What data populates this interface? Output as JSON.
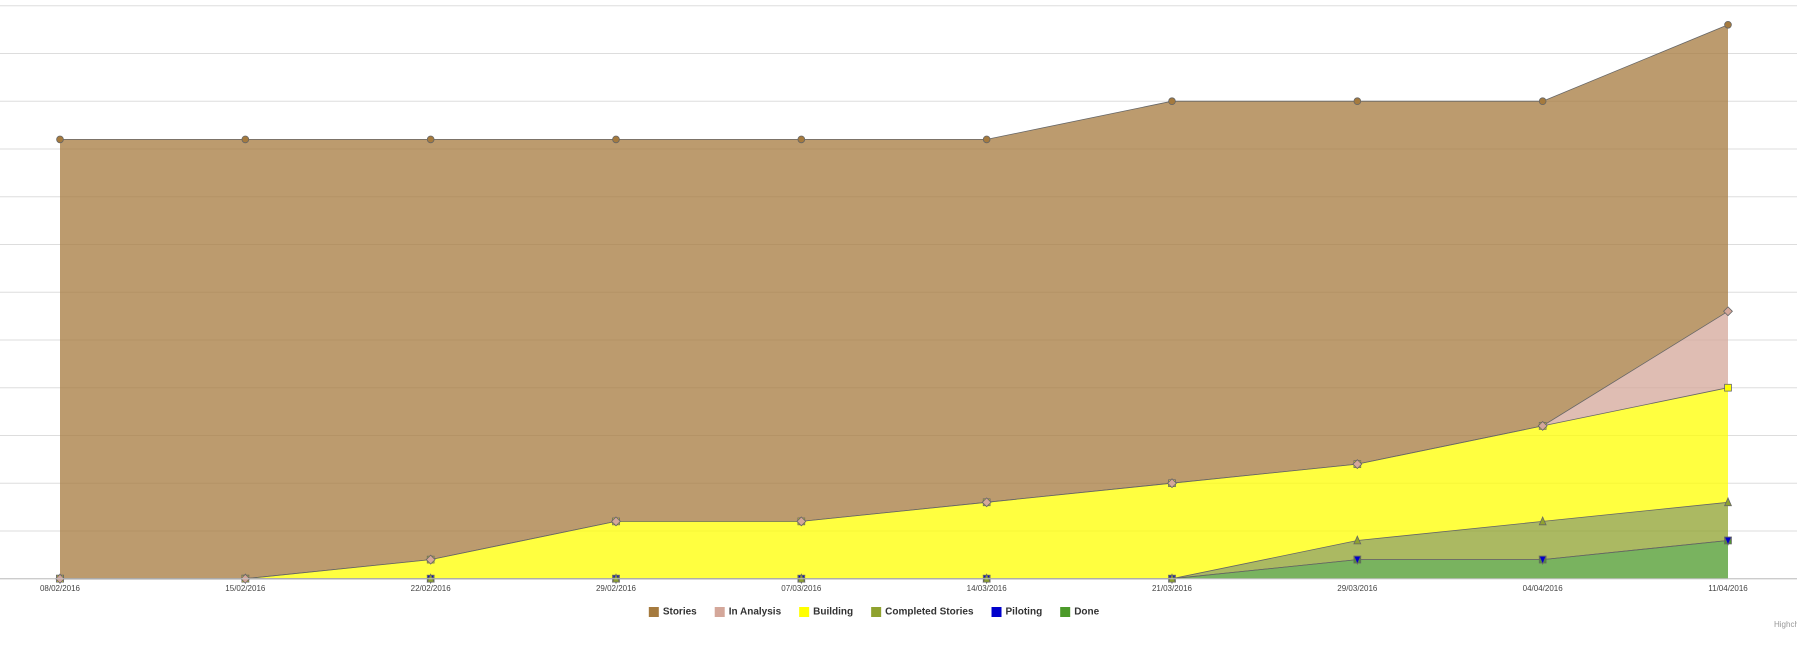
{
  "chart_data": {
    "type": "stacked-area",
    "categories": [
      "08/02/2016",
      "15/02/2016",
      "22/02/2016",
      "29/02/2016",
      "07/03/2016",
      "14/03/2016",
      "21/03/2016",
      "29/03/2016",
      "04/04/2016",
      "11/04/2016"
    ],
    "series": [
      {
        "name": "Stories",
        "color": "#a57a3e",
        "marker": "circle",
        "values": [
          23,
          23,
          22,
          20,
          20,
          19,
          20,
          19,
          17,
          15
        ]
      },
      {
        "name": "In Analysis",
        "color": "#d4a79a",
        "marker": "diamond",
        "values": [
          0,
          0,
          0,
          0,
          0,
          0,
          0,
          0,
          0,
          4
        ]
      },
      {
        "name": "Building",
        "color": "#ffff00",
        "marker": "square",
        "values": [
          0,
          0,
          1,
          3,
          3,
          4,
          5,
          4,
          5,
          6
        ]
      },
      {
        "name": "Completed Stories",
        "color": "#8fa22e",
        "marker": "triangle",
        "values": [
          0,
          0,
          0,
          0,
          0,
          0,
          0,
          1,
          2,
          2
        ]
      },
      {
        "name": "Piloting",
        "color": "#0000cc",
        "marker": "triangle-down",
        "values": [
          0,
          0,
          0,
          0,
          0,
          0,
          0,
          0,
          0,
          0
        ]
      },
      {
        "name": "Done",
        "color": "#4c9a2a",
        "marker": "square",
        "values": [
          0,
          0,
          0,
          0,
          0,
          0,
          0,
          1,
          1,
          2
        ]
      }
    ],
    "ylim": [
      0,
      30
    ],
    "yticks": [
      0,
      2.5,
      5,
      7.5,
      10,
      12.5,
      15,
      17.5,
      20,
      22.5,
      25,
      27.5,
      30
    ],
    "grid": true,
    "credit": "Highcharts.com"
  }
}
